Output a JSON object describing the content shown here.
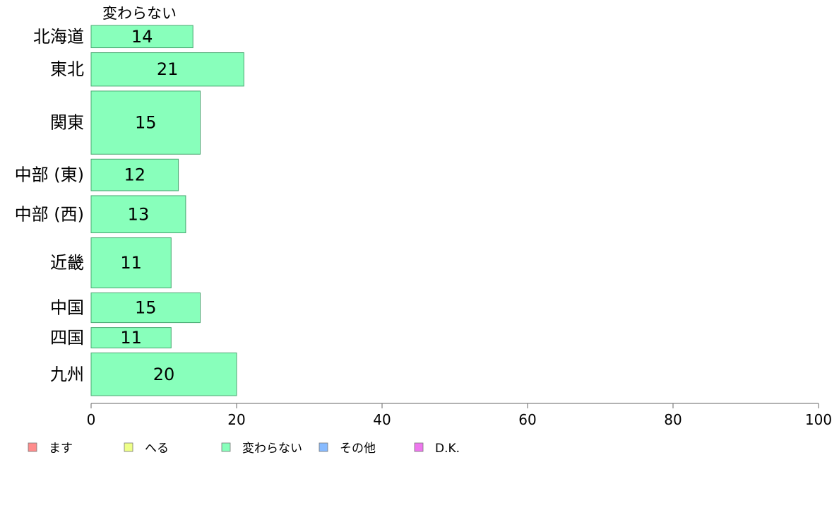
{
  "chart_data": {
    "type": "bar",
    "orientation": "horizontal",
    "series_title": "変わらない",
    "categories": [
      "北海道",
      "東北",
      "関東",
      "中部 (東)",
      "中部 (西)",
      "近畿",
      "中国",
      "四国",
      "九州"
    ],
    "bar_weights": [
      0.6,
      0.9,
      1.7,
      0.85,
      1.0,
      1.35,
      0.8,
      0.55,
      1.15
    ],
    "series": [
      {
        "name": "変わらない",
        "values": [
          14,
          21,
          15,
          12,
          13,
          11,
          15,
          11,
          20
        ]
      }
    ],
    "value_labels": [
      "14",
      "21",
      "15",
      "12",
      "13",
      "11",
      "15",
      "11",
      "20"
    ],
    "xlim": [
      0,
      100
    ],
    "xticks": [
      "0",
      "20",
      "40",
      "60",
      "80",
      "100"
    ],
    "grid": false,
    "bar_color": "#88ffbb",
    "bar_stroke": "#4aa872",
    "legend": {
      "placement": "bottom-left",
      "items": [
        {
          "label": "ます",
          "color": "#ff8c8c"
        },
        {
          "label": "へる",
          "color": "#eeff88"
        },
        {
          "label": "変わらない",
          "color": "#88ffbb"
        },
        {
          "label": "その他",
          "color": "#88bbff"
        },
        {
          "label": "D.K.",
          "color": "#ee77ee"
        }
      ]
    }
  }
}
